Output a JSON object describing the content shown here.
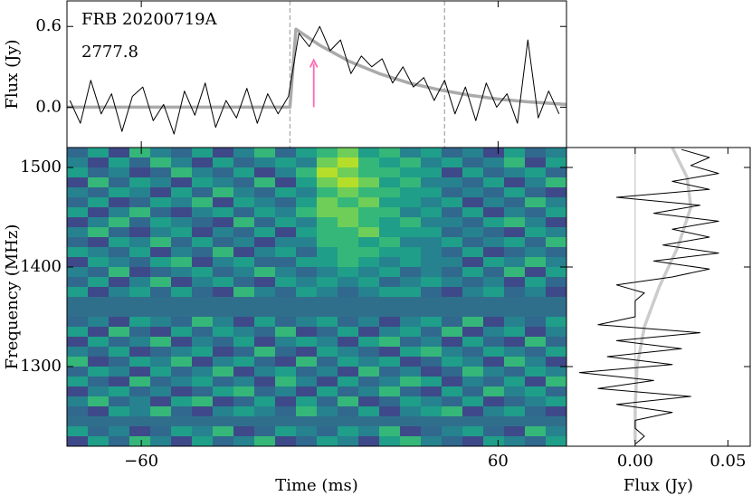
{
  "chart_data": [
    {
      "type": "line",
      "ylabel": "Flux (Jy)",
      "annotations": [
        "FRB 20200719A",
        "2777.8"
      ],
      "xlim": [
        -85,
        83
      ],
      "xticks": [
        -60,
        60
      ],
      "ylim": [
        -0.3,
        0.79
      ],
      "yticks": [
        {
          "value": 0,
          "label": "0.0"
        },
        0.6
      ],
      "vlines": [
        -10,
        42
      ],
      "vline_color": "#aaaaaa",
      "arrow": {
        "x": -2,
        "y": [
          0,
          0.35
        ],
        "color": "#ff69b4"
      },
      "series": [
        {
          "color": "#000000",
          "x": [
            -84,
            -80.5,
            -77,
            -73.5,
            -70,
            -66.5,
            -63,
            -59.5,
            -56,
            -52.5,
            -49,
            -45.5,
            -42,
            -38.5,
            -35,
            -31.5,
            -28,
            -24.5,
            -21,
            -17.5,
            -14,
            -10.5,
            -7,
            -3.5,
            0,
            3.5,
            7,
            10.5,
            14,
            17.5,
            21,
            24.5,
            28,
            31.5,
            35,
            38.5,
            42,
            45.5,
            49,
            52.5,
            56,
            59.5,
            63,
            66.5,
            70,
            73.5,
            77,
            80.5
          ],
          "values": [
            0.05,
            -0.12,
            0.2,
            -0.05,
            0.1,
            -0.18,
            0.08,
            0.15,
            -0.1,
            0.02,
            -0.2,
            0.12,
            -0.06,
            0.18,
            -0.15,
            0.05,
            -0.08,
            0.14,
            -0.12,
            0.1,
            -0.05,
            0.08,
            0.55,
            0.45,
            0.6,
            0.42,
            0.5,
            0.25,
            0.38,
            0.3,
            0.36,
            0.18,
            0.3,
            0.15,
            0.22,
            0.05,
            0.2,
            -0.05,
            0.15,
            -0.1,
            0.18,
            0,
            0.1,
            -0.12,
            0.5,
            -0.08,
            0.12,
            -0.05
          ]
        },
        {
          "color": "#aaaaaa",
          "x": [
            -85,
            -10,
            -8,
            0,
            10,
            20,
            30,
            40,
            50,
            60,
            70,
            83
          ],
          "values": [
            0,
            0,
            0.58,
            0.46,
            0.34,
            0.25,
            0.18,
            0.13,
            0.09,
            0.06,
            0.04,
            0.02
          ]
        }
      ]
    },
    {
      "type": "heatmap",
      "xlabel": "Time (ms)",
      "ylabel": "Frequency (MHz)",
      "xlim": [
        -85,
        83
      ],
      "xticks": [
        {
          "value": -60,
          "label": "−60"
        },
        60
      ],
      "ylim": [
        1220,
        1520
      ],
      "yticks": [
        1300,
        1400,
        1500
      ],
      "colormap": "viridis",
      "zlim": [
        0,
        9
      ],
      "mask_color": "#2f6f8c",
      "xbins": [
        -85,
        -78,
        -71,
        -64,
        -57,
        -50,
        -43,
        -36,
        -29,
        -22,
        -15,
        -8,
        -1,
        6,
        13,
        20,
        27,
        34,
        41,
        48,
        55,
        62,
        69,
        76,
        83
      ],
      "ybins": [
        1520,
        1510,
        1500,
        1490,
        1480,
        1470,
        1460,
        1450,
        1440,
        1430,
        1420,
        1410,
        1400,
        1390,
        1380,
        1370,
        1360,
        1350,
        1340,
        1330,
        1320,
        1310,
        1300,
        1290,
        1280,
        1270,
        1260,
        1250,
        1240,
        1230,
        1220
      ],
      "z": [
        [
          3,
          5,
          2,
          6,
          4,
          3,
          5,
          2,
          4,
          6,
          3,
          5,
          6,
          7,
          5,
          6,
          4,
          5,
          3,
          4,
          2,
          5,
          3,
          4
        ],
        [
          4,
          2,
          5,
          3,
          6,
          4,
          2,
          5,
          3,
          4,
          5,
          4,
          7,
          8,
          6,
          5,
          6,
          4,
          5,
          3,
          4,
          6,
          2,
          5
        ],
        [
          5,
          3,
          4,
          2,
          3,
          6,
          4,
          3,
          5,
          2,
          4,
          6,
          8,
          7,
          6,
          6,
          5,
          5,
          2,
          5,
          3,
          4,
          5,
          3
        ],
        [
          2,
          6,
          3,
          5,
          4,
          2,
          5,
          4,
          3,
          6,
          2,
          5,
          7,
          8,
          7,
          5,
          6,
          4,
          4,
          3,
          5,
          2,
          4,
          6
        ],
        [
          4,
          3,
          5,
          4,
          2,
          5,
          3,
          6,
          4,
          3,
          5,
          4,
          6,
          7,
          6,
          6,
          5,
          5,
          3,
          4,
          3,
          5,
          3,
          2
        ],
        [
          3,
          5,
          2,
          3,
          5,
          4,
          6,
          2,
          5,
          4,
          3,
          5,
          7,
          6,
          7,
          5,
          5,
          4,
          5,
          2,
          4,
          3,
          6,
          4
        ],
        [
          5,
          2,
          4,
          6,
          3,
          2,
          4,
          5,
          3,
          5,
          4,
          6,
          7,
          7,
          6,
          6,
          4,
          5,
          3,
          5,
          2,
          4,
          3,
          5
        ],
        [
          2,
          4,
          6,
          3,
          5,
          4,
          3,
          2,
          6,
          3,
          5,
          4,
          6,
          7,
          6,
          5,
          6,
          4,
          4,
          3,
          5,
          6,
          4,
          2
        ],
        [
          4,
          6,
          3,
          2,
          4,
          5,
          2,
          4,
          3,
          5,
          2,
          5,
          6,
          6,
          7,
          5,
          5,
          5,
          3,
          4,
          3,
          2,
          5,
          4
        ],
        [
          3,
          2,
          5,
          4,
          6,
          3,
          5,
          3,
          4,
          2,
          4,
          4,
          6,
          6,
          5,
          6,
          4,
          4,
          5,
          3,
          4,
          5,
          3,
          6
        ],
        [
          5,
          4,
          3,
          5,
          2,
          4,
          3,
          6,
          2,
          4,
          5,
          3,
          5,
          6,
          6,
          5,
          5,
          4,
          3,
          5,
          2,
          3,
          4,
          3
        ],
        [
          2,
          5,
          4,
          3,
          5,
          6,
          2,
          4,
          5,
          3,
          3,
          5,
          5,
          6,
          5,
          4,
          5,
          4,
          4,
          2,
          5,
          4,
          6,
          4
        ],
        [
          4,
          3,
          6,
          2,
          3,
          4,
          5,
          3,
          4,
          6,
          4,
          3,
          4,
          5,
          4,
          5,
          3,
          4,
          3,
          5,
          3,
          6,
          2,
          5
        ],
        [
          3,
          5,
          2,
          4,
          6,
          2,
          4,
          5,
          3,
          2,
          5,
          4,
          5,
          4,
          5,
          3,
          4,
          5,
          4,
          3,
          4,
          2,
          5,
          3
        ],
        [
          5,
          2,
          4,
          5,
          3,
          5,
          3,
          2,
          6,
          4,
          3,
          5,
          4,
          3,
          4,
          5,
          5,
          3,
          2,
          4,
          5,
          3,
          4,
          2
        ],
        [
          null,
          null,
          null,
          null,
          null,
          null,
          null,
          null,
          null,
          null,
          null,
          null,
          null,
          null,
          null,
          null,
          null,
          null,
          null,
          null,
          null,
          null,
          null,
          null
        ],
        [
          null,
          null,
          null,
          null,
          null,
          null,
          null,
          null,
          null,
          null,
          null,
          null,
          null,
          null,
          null,
          null,
          null,
          null,
          null,
          null,
          null,
          null,
          null,
          null
        ],
        [
          3,
          4,
          2,
          5,
          4,
          3,
          6,
          4,
          2,
          5,
          3,
          4,
          5,
          3,
          4,
          2,
          4,
          5,
          3,
          6,
          2,
          4,
          3,
          5
        ],
        [
          5,
          2,
          6,
          3,
          2,
          5,
          3,
          5,
          4,
          3,
          6,
          2,
          3,
          5,
          2,
          4,
          5,
          3,
          6,
          2,
          4,
          5,
          2,
          4
        ],
        [
          2,
          5,
          3,
          4,
          6,
          2,
          4,
          3,
          5,
          2,
          4,
          5,
          4,
          2,
          5,
          6,
          3,
          4,
          2,
          5,
          3,
          2,
          6,
          3
        ],
        [
          4,
          3,
          5,
          2,
          3,
          4,
          5,
          2,
          3,
          6,
          3,
          2,
          5,
          4,
          3,
          2,
          5,
          6,
          4,
          3,
          5,
          4,
          3,
          5
        ],
        [
          6,
          2,
          3,
          5,
          4,
          6,
          2,
          4,
          5,
          3,
          2,
          6,
          3,
          5,
          4,
          5,
          2,
          3,
          5,
          4,
          2,
          6,
          4,
          2
        ],
        [
          3,
          5,
          4,
          2,
          5,
          3,
          4,
          6,
          2,
          4,
          5,
          3,
          4,
          2,
          6,
          3,
          4,
          2,
          3,
          6,
          4,
          3,
          5,
          4
        ],
        [
          5,
          3,
          2,
          6,
          3,
          4,
          5,
          3,
          4,
          2,
          6,
          4,
          2,
          5,
          3,
          4,
          6,
          5,
          2,
          4,
          3,
          5,
          2,
          6
        ],
        [
          2,
          4,
          5,
          3,
          4,
          2,
          3,
          5,
          6,
          3,
          4,
          2,
          5,
          3,
          4,
          6,
          3,
          2,
          5,
          3,
          6,
          4,
          5,
          3
        ],
        [
          4,
          6,
          3,
          4,
          2,
          5,
          6,
          2,
          3,
          5,
          2,
          5,
          3,
          6,
          2,
          3,
          5,
          4,
          3,
          5,
          2,
          3,
          4,
          5
        ],
        [
          3,
          2,
          5,
          4,
          6,
          3,
          2,
          4,
          5,
          4,
          3,
          6,
          4,
          3,
          5,
          2,
          4,
          5,
          6,
          2,
          4,
          5,
          3,
          2
        ],
        [
          null,
          null,
          null,
          null,
          null,
          null,
          null,
          null,
          null,
          null,
          null,
          null,
          null,
          null,
          null,
          null,
          null,
          null,
          null,
          null,
          null,
          null,
          null,
          null
        ],
        [
          5,
          3,
          4,
          2,
          3,
          5,
          4,
          6,
          2,
          3,
          5,
          4,
          3,
          5,
          4,
          6,
          2,
          3,
          4,
          5,
          3,
          2,
          6,
          4
        ],
        [
          2,
          5,
          3,
          6,
          4,
          2,
          5,
          3,
          4,
          6,
          2,
          3,
          5,
          4,
          2,
          5,
          6,
          4,
          3,
          2,
          5,
          4,
          3,
          5
        ]
      ]
    },
    {
      "type": "line",
      "orientation": "horizontal",
      "xlabel": "Flux (Jy)",
      "xlim": [
        -0.037,
        0.062
      ],
      "xticks": [
        {
          "value": 0,
          "label": "0.00"
        },
        0.05
      ],
      "ylim": [
        1220,
        1520
      ],
      "yticks": [
        1300,
        1400,
        1500
      ],
      "zero_line_color": "#bbbbbb",
      "series": [
        {
          "color": "#000000",
          "y": [
            1222,
            1230,
            1238,
            1246,
            1254,
            1262,
            1270,
            1278,
            1286,
            1294,
            1302,
            1310,
            1318,
            1326,
            1334,
            1342,
            1350,
            1358,
            1366,
            1374,
            1382,
            1390,
            1398,
            1406,
            1414,
            1422,
            1430,
            1438,
            1446,
            1454,
            1462,
            1470,
            1478,
            1486,
            1494,
            1502,
            1510,
            1518
          ],
          "values": [
            0,
            0.005,
            0,
            0,
            0.02,
            -0.01,
            0.03,
            -0.02,
            0.01,
            -0.03,
            0.02,
            -0.015,
            0.025,
            -0.01,
            0.035,
            -0.02,
            0,
            0,
            0,
            0.005,
            -0.01,
            0.02,
            0.04,
            0.01,
            0.045,
            0.015,
            0.04,
            0.02,
            0.045,
            0.01,
            0.035,
            -0.01,
            0.04,
            0.02,
            0.045,
            0.03,
            0.04,
            0.025
          ]
        },
        {
          "color": "#cccccc",
          "y": [
            1225,
            1260,
            1300,
            1340,
            1380,
            1420,
            1460,
            1490,
            1520
          ],
          "values": [
            0,
            0,
            0.001,
            0.005,
            0.013,
            0.023,
            0.03,
            0.028,
            0.02
          ]
        }
      ]
    }
  ]
}
